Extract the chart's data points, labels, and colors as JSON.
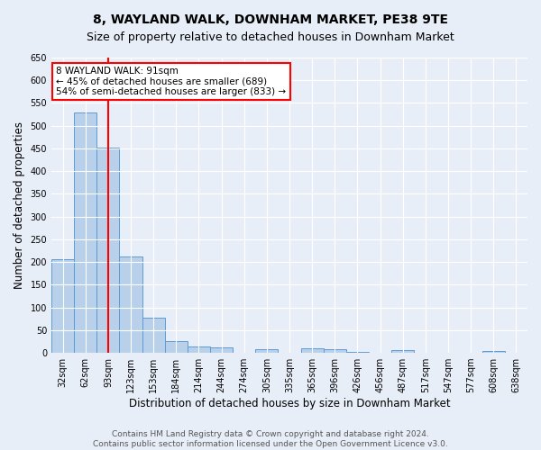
{
  "title": "8, WAYLAND WALK, DOWNHAM MARKET, PE38 9TE",
  "subtitle": "Size of property relative to detached houses in Downham Market",
  "xlabel": "Distribution of detached houses by size in Downham Market",
  "ylabel": "Number of detached properties",
  "footer_line1": "Contains HM Land Registry data © Crown copyright and database right 2024.",
  "footer_line2": "Contains public sector information licensed under the Open Government Licence v3.0.",
  "categories": [
    "32sqm",
    "62sqm",
    "93sqm",
    "123sqm",
    "153sqm",
    "184sqm",
    "214sqm",
    "244sqm",
    "274sqm",
    "305sqm",
    "335sqm",
    "365sqm",
    "396sqm",
    "426sqm",
    "456sqm",
    "487sqm",
    "517sqm",
    "547sqm",
    "577sqm",
    "608sqm",
    "638sqm"
  ],
  "values": [
    207,
    530,
    452,
    213,
    77,
    26,
    15,
    12,
    0,
    8,
    0,
    10,
    8,
    2,
    0,
    6,
    0,
    0,
    0,
    5,
    0
  ],
  "bar_color": "#b8d0ea",
  "bar_edge_color": "#5b9bd5",
  "red_line_x": 2,
  "annotation_text": "8 WAYLAND WALK: 91sqm\n← 45% of detached houses are smaller (689)\n54% of semi-detached houses are larger (833) →",
  "annotation_box_color": "white",
  "annotation_box_edge_color": "red",
  "ylim": [
    0,
    650
  ],
  "yticks": [
    0,
    50,
    100,
    150,
    200,
    250,
    300,
    350,
    400,
    450,
    500,
    550,
    600,
    650
  ],
  "bg_color": "#e8eef8",
  "grid_color": "white",
  "title_fontsize": 10,
  "subtitle_fontsize": 9,
  "xlabel_fontsize": 8.5,
  "ylabel_fontsize": 8.5,
  "tick_fontsize": 7,
  "footer_fontsize": 6.5,
  "annotation_fontsize": 7.5
}
